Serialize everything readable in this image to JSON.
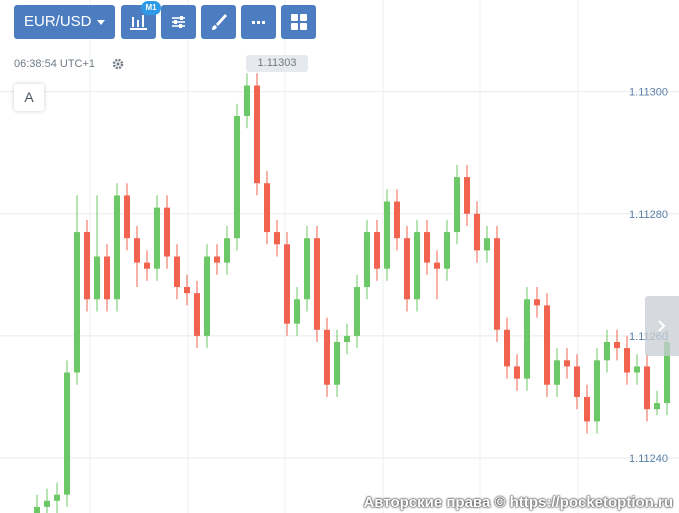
{
  "toolbar": {
    "symbol": "EUR/USD",
    "timeframe_badge": "M1"
  },
  "clock": "06:38:54 UTC+1",
  "crosshair_price_label": "1.11303",
  "font_button": "A",
  "watermark": "Авторские права © https://pocketoption.ru",
  "chart_data": {
    "type": "candlestick",
    "up_color": "#6cc866",
    "down_color": "#f2634f",
    "grid": true,
    "ylim": [
      1.11231,
      1.11315
    ],
    "yticks": [
      {
        "value": 1.1124,
        "label": "1.11240"
      },
      {
        "value": 1.1126,
        "label": "1.11260"
      },
      {
        "value": 1.1128,
        "label": "1.11280"
      },
      {
        "value": 1.113,
        "label": "1.11300"
      }
    ],
    "open": [
      1.11231,
      1.11232,
      1.11233,
      1.11234,
      1.11254,
      1.11277,
      1.11266,
      1.11273,
      1.11266,
      1.11283,
      1.11276,
      1.11272,
      1.11271,
      1.11281,
      1.11273,
      1.11268,
      1.11267,
      1.1126,
      1.11273,
      1.11272,
      1.11276,
      1.11296,
      1.11301,
      1.11285,
      1.11277,
      1.11275,
      1.11262,
      1.11266,
      1.11276,
      1.11261,
      1.11252,
      1.11259,
      1.1126,
      1.11268,
      1.11277,
      1.11271,
      1.11282,
      1.11276,
      1.11266,
      1.11277,
      1.11272,
      1.11271,
      1.11277,
      1.11286,
      1.1128,
      1.11274,
      1.11276,
      1.11261,
      1.11255,
      1.11253,
      1.11266,
      1.11265,
      1.11252,
      1.11256,
      1.11255,
      1.1125,
      1.11246,
      1.11256,
      1.11259,
      1.11258,
      1.11254,
      1.11255,
      1.11248,
      1.11249
    ],
    "high": [
      1.11234,
      1.11235,
      1.11236,
      1.11256,
      1.11283,
      1.11279,
      1.11283,
      1.11275,
      1.11285,
      1.11285,
      1.11278,
      1.11274,
      1.11283,
      1.11283,
      1.11275,
      1.1127,
      1.11269,
      1.11275,
      1.11275,
      1.11278,
      1.11298,
      1.11303,
      1.11303,
      1.11287,
      1.11279,
      1.11277,
      1.11268,
      1.11278,
      1.11278,
      1.11263,
      1.11261,
      1.11262,
      1.1127,
      1.11279,
      1.11279,
      1.11284,
      1.11284,
      1.11278,
      1.11279,
      1.11279,
      1.11274,
      1.11279,
      1.11288,
      1.11288,
      1.11282,
      1.11278,
      1.11278,
      1.11263,
      1.11257,
      1.11268,
      1.11268,
      1.11267,
      1.11258,
      1.11258,
      1.11257,
      1.11252,
      1.11258,
      1.11261,
      1.11261,
      1.1126,
      1.11257,
      1.11257,
      1.11251,
      1.11261
    ],
    "low": [
      1.11229,
      1.1123,
      1.11231,
      1.11232,
      1.11252,
      1.11264,
      1.11264,
      1.11264,
      1.11264,
      1.11274,
      1.11268,
      1.11269,
      1.11269,
      1.11271,
      1.11266,
      1.11265,
      1.11258,
      1.11258,
      1.1127,
      1.1127,
      1.11274,
      1.11294,
      1.11283,
      1.11275,
      1.11273,
      1.1126,
      1.1126,
      1.11264,
      1.11259,
      1.1125,
      1.1125,
      1.11257,
      1.11258,
      1.11266,
      1.11269,
      1.11269,
      1.11274,
      1.11264,
      1.11264,
      1.1127,
      1.11266,
      1.11269,
      1.11275,
      1.11278,
      1.11272,
      1.11272,
      1.11259,
      1.11253,
      1.11251,
      1.11251,
      1.11263,
      1.1125,
      1.1125,
      1.11253,
      1.11248,
      1.11244,
      1.11244,
      1.11254,
      1.11256,
      1.11252,
      1.11252,
      1.11246,
      1.11247,
      1.11247
    ],
    "close": [
      1.11232,
      1.11233,
      1.11234,
      1.11254,
      1.11277,
      1.11266,
      1.11273,
      1.11266,
      1.11283,
      1.11276,
      1.11272,
      1.11271,
      1.11281,
      1.11273,
      1.11268,
      1.11267,
      1.1126,
      1.11273,
      1.11272,
      1.11276,
      1.11296,
      1.11301,
      1.11285,
      1.11277,
      1.11275,
      1.11262,
      1.11266,
      1.11276,
      1.11261,
      1.11252,
      1.11259,
      1.1126,
      1.11268,
      1.11277,
      1.11271,
      1.11282,
      1.11276,
      1.11266,
      1.11277,
      1.11272,
      1.11271,
      1.11277,
      1.11286,
      1.1128,
      1.11274,
      1.11276,
      1.11261,
      1.11255,
      1.11253,
      1.11266,
      1.11265,
      1.11252,
      1.11256,
      1.11255,
      1.1125,
      1.11246,
      1.11256,
      1.11259,
      1.11258,
      1.11254,
      1.11255,
      1.11248,
      1.11249,
      1.11259
    ]
  }
}
